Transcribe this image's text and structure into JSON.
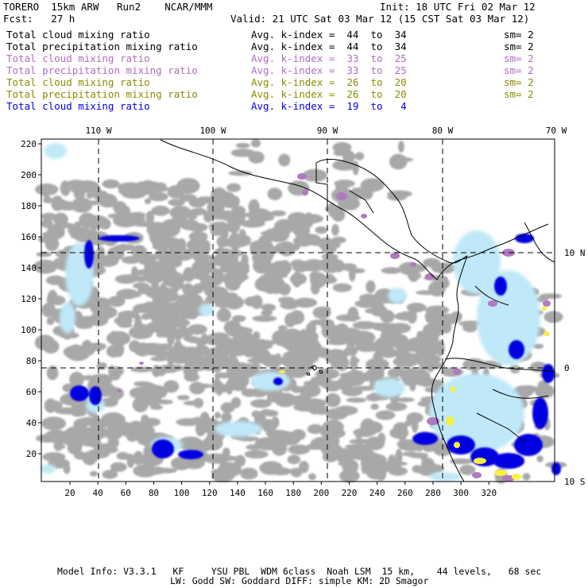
{
  "header": {
    "model": "TORERO  15km ARW   Run2    NCAR/MMM",
    "init": "Init: 18 UTC Fri 02 Mar 12",
    "fcst": "Fcst:   27 h",
    "valid": "Valid: 21 UTC Sat 03 Mar 12 (15 CST Sat 03 Mar 12)"
  },
  "legend": [
    {
      "field": "Total cloud mixing ratio",
      "stat": "Avg. k-index =  44  to  34",
      "sm": "sm= 2",
      "color": "#000000"
    },
    {
      "field": "Total precipitation mixing ratio",
      "stat": "Avg. k-index =  44  to  34",
      "sm": "sm= 2",
      "color": "#000000"
    },
    {
      "field": "Total cloud mixing ratio",
      "stat": "Avg. k-index =  33  to  25",
      "sm": "sm= 2",
      "color": "#b06cc0"
    },
    {
      "field": "Total precipitation mixing ratio",
      "stat": "Avg. k-index =  33  to  25",
      "sm": "sm= 2",
      "color": "#b06cc0"
    },
    {
      "field": "Total cloud mixing ratio",
      "stat": "Avg. k-index =  26  to  20",
      "sm": "sm= 2",
      "color": "#8a8a00"
    },
    {
      "field": "Total precipitation mixing ratio",
      "stat": "Avg. k-index =  26  to  20",
      "sm": "sm= 2",
      "color": "#8a8a00"
    },
    {
      "field": "Total cloud mixing ratio",
      "stat": "Avg. k-index =  19  to   4",
      "sm": "",
      "color": "#0000e0"
    }
  ],
  "map": {
    "lon_labels": [
      "110 W",
      "100 W",
      "90 W",
      "80 W",
      "70 W"
    ],
    "lat_labels_right": [
      "10 N",
      "0",
      "10 S"
    ],
    "x_ticks": [
      "20",
      "40",
      "60",
      "80",
      "100",
      "120",
      "140",
      "160",
      "180",
      "200",
      "220",
      "240",
      "260",
      "280",
      "300",
      "320"
    ],
    "y_ticks": [
      "220",
      "200",
      "180",
      "160",
      "140",
      "120",
      "100",
      "80",
      "60",
      "40",
      "20"
    ],
    "colors": {
      "gray_cloud": "#a8a8a8",
      "light_blue": "#bfe8f8",
      "blue": "#0000e0",
      "purple": "#b07ac0",
      "yellow": "#f8f040"
    }
  },
  "footer": {
    "line1": "Model Info: V3.3.1   KF     YSU PBL  WDM 6class  Noah LSM  15 km,    44 levels,   68 sec",
    "line2": "LW: Godd SW: Goddard DIFF: simple KM: 2D Smagor"
  }
}
